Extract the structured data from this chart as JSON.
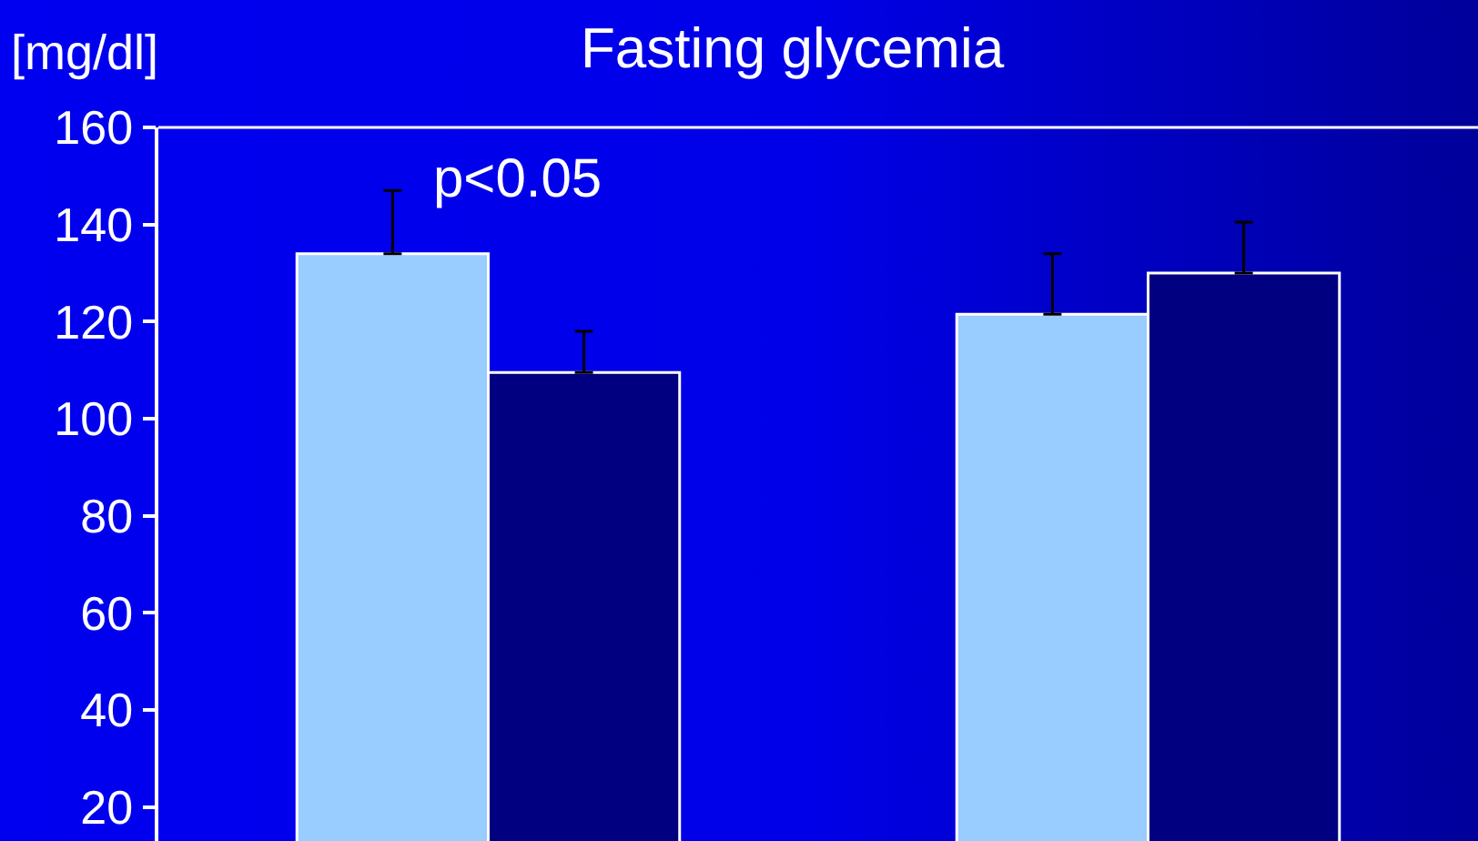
{
  "chart_data": {
    "type": "bar",
    "title": "Fasting glycemia",
    "ylabel": "[mg/dl]",
    "categories": [
      null,
      null
    ],
    "series": [
      {
        "color": "#99ccff",
        "values": [
          134,
          121.5
        ],
        "errors": [
          [
            134,
            147
          ],
          [
            121.5,
            134
          ]
        ]
      },
      {
        "color": "#000080",
        "values": [
          109.5,
          130
        ],
        "errors": [
          [
            109.5,
            118
          ],
          [
            130,
            140.5
          ]
        ]
      }
    ],
    "annotations": [
      "p<0.05"
    ],
    "ylim": [
      13,
      160
    ],
    "yticks": [
      20,
      40,
      60,
      80,
      100,
      120,
      140,
      160
    ],
    "grid": false
  }
}
